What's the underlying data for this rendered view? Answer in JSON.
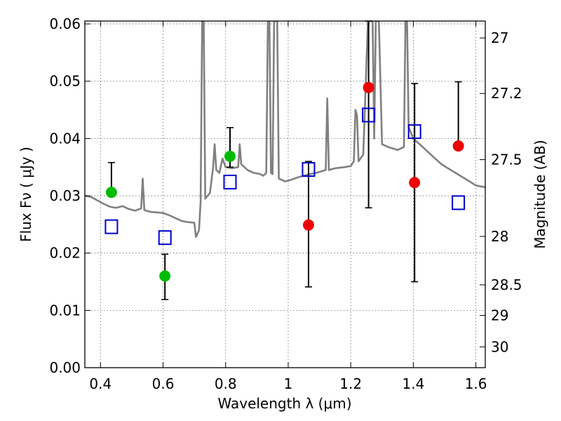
{
  "chart_data": {
    "type": "scatter",
    "title": "",
    "xlabel": "Wavelength  λ (μm)",
    "ylabel": "Flux  Fν  ( μJy )",
    "ylabel_right": "Magnitude (AB)",
    "xlim": [
      0.35,
      1.63
    ],
    "ylim": [
      0.0,
      0.0605
    ],
    "grid": true,
    "x_ticks": [
      {
        "value": 0.4,
        "label": "0.4"
      },
      {
        "value": 0.6,
        "label": "0.6"
      },
      {
        "value": 0.8,
        "label": "0.8"
      },
      {
        "value": 1.0,
        "label": "1"
      },
      {
        "value": 1.2,
        "label": "1.2"
      },
      {
        "value": 1.4,
        "label": "1.4"
      },
      {
        "value": 1.6,
        "label": "1.6"
      }
    ],
    "y_ticks": [
      {
        "value": 0.0,
        "label": "0.00"
      },
      {
        "value": 0.01,
        "label": "0.01"
      },
      {
        "value": 0.02,
        "label": "0.02"
      },
      {
        "value": 0.03,
        "label": "0.03"
      },
      {
        "value": 0.04,
        "label": "0.04"
      },
      {
        "value": 0.05,
        "label": "0.05"
      },
      {
        "value": 0.06,
        "label": "0.06"
      }
    ],
    "right_ticks": [
      {
        "value": 27,
        "label": "27"
      },
      {
        "value": 27.2,
        "label": "27.2"
      },
      {
        "value": 27.5,
        "label": "27.5"
      },
      {
        "value": 28,
        "label": "28"
      },
      {
        "value": 28.5,
        "label": "28.5"
      },
      {
        "value": 29,
        "label": "29"
      },
      {
        "value": 30,
        "label": "30"
      }
    ],
    "series": [
      {
        "name": "model-spectrum",
        "kind": "line",
        "color": "#808080",
        "points": [
          [
            0.35,
            0.03
          ],
          [
            0.37,
            0.0298
          ],
          [
            0.39,
            0.0292
          ],
          [
            0.41,
            0.0286
          ],
          [
            0.43,
            0.0281
          ],
          [
            0.45,
            0.0279
          ],
          [
            0.47,
            0.0282
          ],
          [
            0.49,
            0.0277
          ],
          [
            0.51,
            0.0274
          ],
          [
            0.53,
            0.0278
          ],
          [
            0.535,
            0.033
          ],
          [
            0.54,
            0.0275
          ],
          [
            0.56,
            0.0272
          ],
          [
            0.58,
            0.0271
          ],
          [
            0.6,
            0.027
          ],
          [
            0.62,
            0.0266
          ],
          [
            0.64,
            0.0261
          ],
          [
            0.66,
            0.0256
          ],
          [
            0.68,
            0.0254
          ],
          [
            0.7,
            0.0253
          ],
          [
            0.705,
            0.0228
          ],
          [
            0.715,
            0.024
          ],
          [
            0.72,
            0.029
          ],
          [
            0.725,
            0.0605
          ],
          [
            0.73,
            0.0605
          ],
          [
            0.735,
            0.0295
          ],
          [
            0.75,
            0.0305
          ],
          [
            0.76,
            0.035
          ],
          [
            0.765,
            0.039
          ],
          [
            0.77,
            0.0345
          ],
          [
            0.78,
            0.034
          ],
          [
            0.79,
            0.0365
          ],
          [
            0.8,
            0.035
          ],
          [
            0.82,
            0.0348
          ],
          [
            0.84,
            0.035
          ],
          [
            0.845,
            0.039
          ],
          [
            0.85,
            0.0355
          ],
          [
            0.87,
            0.0345
          ],
          [
            0.89,
            0.034
          ],
          [
            0.91,
            0.0338
          ],
          [
            0.92,
            0.0335
          ],
          [
            0.93,
            0.034
          ],
          [
            0.935,
            0.0605
          ],
          [
            0.94,
            0.0605
          ],
          [
            0.945,
            0.034
          ],
          [
            0.95,
            0.0338
          ],
          [
            0.955,
            0.0605
          ],
          [
            0.965,
            0.0605
          ],
          [
            0.97,
            0.033
          ],
          [
            0.99,
            0.0325
          ],
          [
            1.01,
            0.0328
          ],
          [
            1.03,
            0.0332
          ],
          [
            1.05,
            0.0335
          ],
          [
            1.07,
            0.0338
          ],
          [
            1.09,
            0.034
          ],
          [
            1.12,
            0.0345
          ],
          [
            1.125,
            0.047
          ],
          [
            1.13,
            0.0345
          ],
          [
            1.15,
            0.0348
          ],
          [
            1.18,
            0.035
          ],
          [
            1.2,
            0.0352
          ],
          [
            1.21,
            0.036
          ],
          [
            1.215,
            0.045
          ],
          [
            1.22,
            0.044
          ],
          [
            1.225,
            0.036
          ],
          [
            1.24,
            0.0372
          ],
          [
            1.255,
            0.0605
          ],
          [
            1.27,
            0.0605
          ],
          [
            1.275,
            0.04
          ],
          [
            1.28,
            0.0605
          ],
          [
            1.29,
            0.0605
          ],
          [
            1.3,
            0.039
          ],
          [
            1.32,
            0.0385
          ],
          [
            1.35,
            0.038
          ],
          [
            1.37,
            0.0385
          ],
          [
            1.375,
            0.0605
          ],
          [
            1.38,
            0.0605
          ],
          [
            1.385,
            0.042
          ],
          [
            1.4,
            0.04
          ],
          [
            1.43,
            0.0385
          ],
          [
            1.46,
            0.037
          ],
          [
            1.49,
            0.0355
          ],
          [
            1.52,
            0.0345
          ],
          [
            1.55,
            0.0335
          ],
          [
            1.58,
            0.0325
          ],
          [
            1.6,
            0.0318
          ],
          [
            1.63,
            0.0315
          ]
        ]
      },
      {
        "name": "observed-green",
        "kind": "points",
        "color": "#00bb00",
        "points": [
          {
            "x": 0.435,
            "y": 0.0306,
            "yerr_low": 0.0306,
            "yerr_high": 0.0358
          },
          {
            "x": 0.606,
            "y": 0.016,
            "yerr_low": 0.0119,
            "yerr_high": 0.0198
          },
          {
            "x": 0.814,
            "y": 0.0369,
            "yerr_low": 0.035,
            "yerr_high": 0.0419
          }
        ]
      },
      {
        "name": "observed-red",
        "kind": "points",
        "color": "#ee0000",
        "points": [
          {
            "x": 1.065,
            "y": 0.0249,
            "yerr_low": 0.0141,
            "yerr_high": 0.036
          },
          {
            "x": 1.257,
            "y": 0.0489,
            "yerr_low": 0.0279,
            "yerr_high": 0.0605
          },
          {
            "x": 1.404,
            "y": 0.0323,
            "yerr_low": 0.015,
            "yerr_high": 0.0496
          },
          {
            "x": 1.544,
            "y": 0.0387,
            "yerr_low": 0.0387,
            "yerr_high": 0.0499
          }
        ]
      },
      {
        "name": "model-bandpass",
        "kind": "squares",
        "color": "#0000cc",
        "points": [
          {
            "x": 0.435,
            "y": 0.0246
          },
          {
            "x": 0.606,
            "y": 0.0227
          },
          {
            "x": 0.814,
            "y": 0.0324
          },
          {
            "x": 1.065,
            "y": 0.0346
          },
          {
            "x": 1.257,
            "y": 0.0441
          },
          {
            "x": 1.404,
            "y": 0.0412
          },
          {
            "x": 1.544,
            "y": 0.0288
          }
        ]
      }
    ]
  }
}
